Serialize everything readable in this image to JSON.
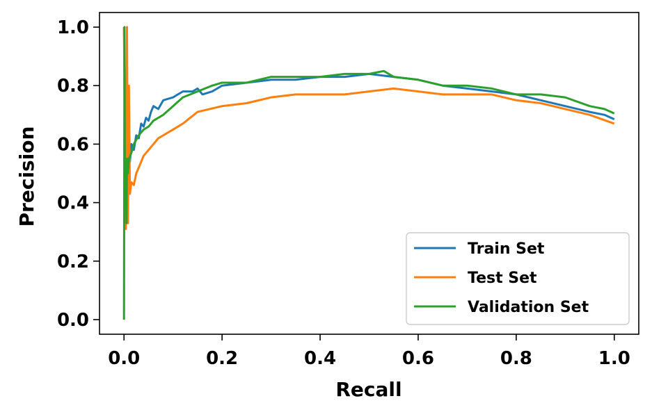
{
  "chart_data": {
    "type": "line",
    "title": "",
    "xlabel": "Recall",
    "ylabel": "Precision",
    "xlim": [
      -0.05,
      1.05
    ],
    "ylim": [
      -0.05,
      1.05
    ],
    "xticks": [
      "0.0",
      "0.2",
      "0.4",
      "0.6",
      "0.8",
      "1.0"
    ],
    "yticks": [
      "0.0",
      "0.2",
      "0.4",
      "0.6",
      "0.8",
      "1.0"
    ],
    "grid": false,
    "legend_position": "lower-right",
    "series": [
      {
        "name": "Train Set",
        "color": "#1f77b4",
        "x": [
          0.0,
          0.003,
          0.004,
          0.006,
          0.008,
          0.01,
          0.012,
          0.015,
          0.02,
          0.025,
          0.03,
          0.035,
          0.04,
          0.045,
          0.05,
          0.055,
          0.06,
          0.07,
          0.08,
          0.1,
          0.12,
          0.14,
          0.15,
          0.16,
          0.18,
          0.2,
          0.25,
          0.3,
          0.35,
          0.4,
          0.45,
          0.5,
          0.55,
          0.6,
          0.65,
          0.7,
          0.75,
          0.8,
          0.85,
          0.9,
          0.95,
          0.98,
          1.0
        ],
        "y": [
          1.0,
          0.66,
          0.47,
          0.55,
          0.5,
          0.58,
          0.54,
          0.6,
          0.58,
          0.63,
          0.62,
          0.67,
          0.66,
          0.69,
          0.68,
          0.71,
          0.73,
          0.72,
          0.75,
          0.76,
          0.78,
          0.78,
          0.79,
          0.77,
          0.78,
          0.8,
          0.81,
          0.82,
          0.82,
          0.83,
          0.83,
          0.84,
          0.83,
          0.82,
          0.8,
          0.79,
          0.78,
          0.77,
          0.75,
          0.73,
          0.71,
          0.7,
          0.685
        ]
      },
      {
        "name": "Test Set",
        "color": "#ff7f0e",
        "x": [
          0.0,
          0.002,
          0.004,
          0.006,
          0.008,
          0.01,
          0.012,
          0.015,
          0.02,
          0.025,
          0.03,
          0.04,
          0.05,
          0.06,
          0.07,
          0.08,
          0.1,
          0.12,
          0.15,
          0.2,
          0.25,
          0.3,
          0.35,
          0.4,
          0.45,
          0.5,
          0.55,
          0.6,
          0.65,
          0.7,
          0.75,
          0.8,
          0.85,
          0.9,
          0.95,
          1.0
        ],
        "y": [
          1.0,
          0.5,
          0.31,
          1.0,
          0.33,
          0.8,
          0.43,
          0.47,
          0.46,
          0.5,
          0.52,
          0.56,
          0.58,
          0.6,
          0.62,
          0.63,
          0.65,
          0.67,
          0.71,
          0.73,
          0.74,
          0.76,
          0.77,
          0.77,
          0.77,
          0.78,
          0.79,
          0.78,
          0.77,
          0.77,
          0.77,
          0.75,
          0.74,
          0.72,
          0.7,
          0.67
        ]
      },
      {
        "name": "Validation Set",
        "color": "#2ca02c",
        "x": [
          0.0,
          0.001,
          0.002,
          0.004,
          0.005,
          0.006,
          0.008,
          0.01,
          0.015,
          0.02,
          0.03,
          0.04,
          0.05,
          0.06,
          0.08,
          0.1,
          0.12,
          0.15,
          0.18,
          0.2,
          0.25,
          0.3,
          0.35,
          0.4,
          0.45,
          0.5,
          0.53,
          0.55,
          0.6,
          0.65,
          0.7,
          0.75,
          0.8,
          0.85,
          0.9,
          0.95,
          0.98,
          1.0
        ],
        "y": [
          0.0,
          1.0,
          0.39,
          0.48,
          0.33,
          0.55,
          0.5,
          0.55,
          0.57,
          0.6,
          0.63,
          0.65,
          0.66,
          0.68,
          0.7,
          0.73,
          0.76,
          0.78,
          0.8,
          0.81,
          0.81,
          0.83,
          0.83,
          0.83,
          0.84,
          0.84,
          0.85,
          0.83,
          0.82,
          0.8,
          0.8,
          0.79,
          0.77,
          0.77,
          0.76,
          0.73,
          0.72,
          0.705
        ]
      }
    ]
  }
}
